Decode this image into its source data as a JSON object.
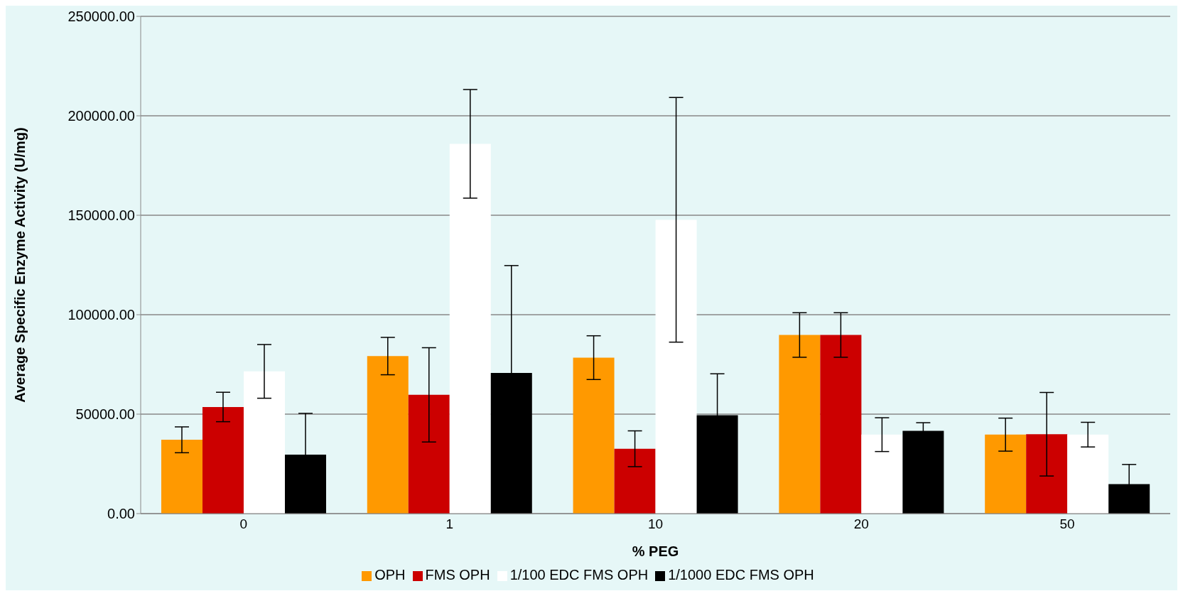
{
  "chart_data": {
    "type": "bar",
    "xlabel": "% PEG",
    "ylabel": "Average Specific Enzyme Activity (U/mg)",
    "categories": [
      "0",
      "1",
      "10",
      "20",
      "50"
    ],
    "series": [
      {
        "name": "OPH",
        "color": "#ff9900",
        "values": [
          37100,
          79200,
          78400,
          89800,
          39700
        ],
        "errors": [
          6500,
          9400,
          11000,
          11200,
          8300
        ]
      },
      {
        "name": "FMS OPH",
        "color": "#cc0000",
        "values": [
          53600,
          59700,
          32600,
          89800,
          39900
        ],
        "errors": [
          7400,
          23700,
          9000,
          11200,
          21000
        ]
      },
      {
        "name": "1/100 EDC FMS OPH",
        "color": "#ffffff",
        "values": [
          71500,
          185900,
          147700,
          39700,
          39700
        ],
        "errors": [
          13500,
          27300,
          61500,
          8500,
          6200
        ]
      },
      {
        "name": "1/1000 EDC FMS OPH",
        "color": "#000000",
        "values": [
          29600,
          70700,
          49500,
          41600,
          14800
        ],
        "errors": [
          20800,
          54000,
          20800,
          4100,
          9900
        ]
      }
    ],
    "ylim": [
      0,
      250000
    ],
    "yticks": [
      {
        "value": 0,
        "label": "0.00"
      },
      {
        "value": 50000,
        "label": "50000.00"
      },
      {
        "value": 100000,
        "label": "100000.00"
      },
      {
        "value": 150000,
        "label": "150000.00"
      },
      {
        "value": 200000,
        "label": "200000.00"
      },
      {
        "value": 250000,
        "label": "250000.00"
      }
    ],
    "grid": "y",
    "legend": "bottom"
  }
}
